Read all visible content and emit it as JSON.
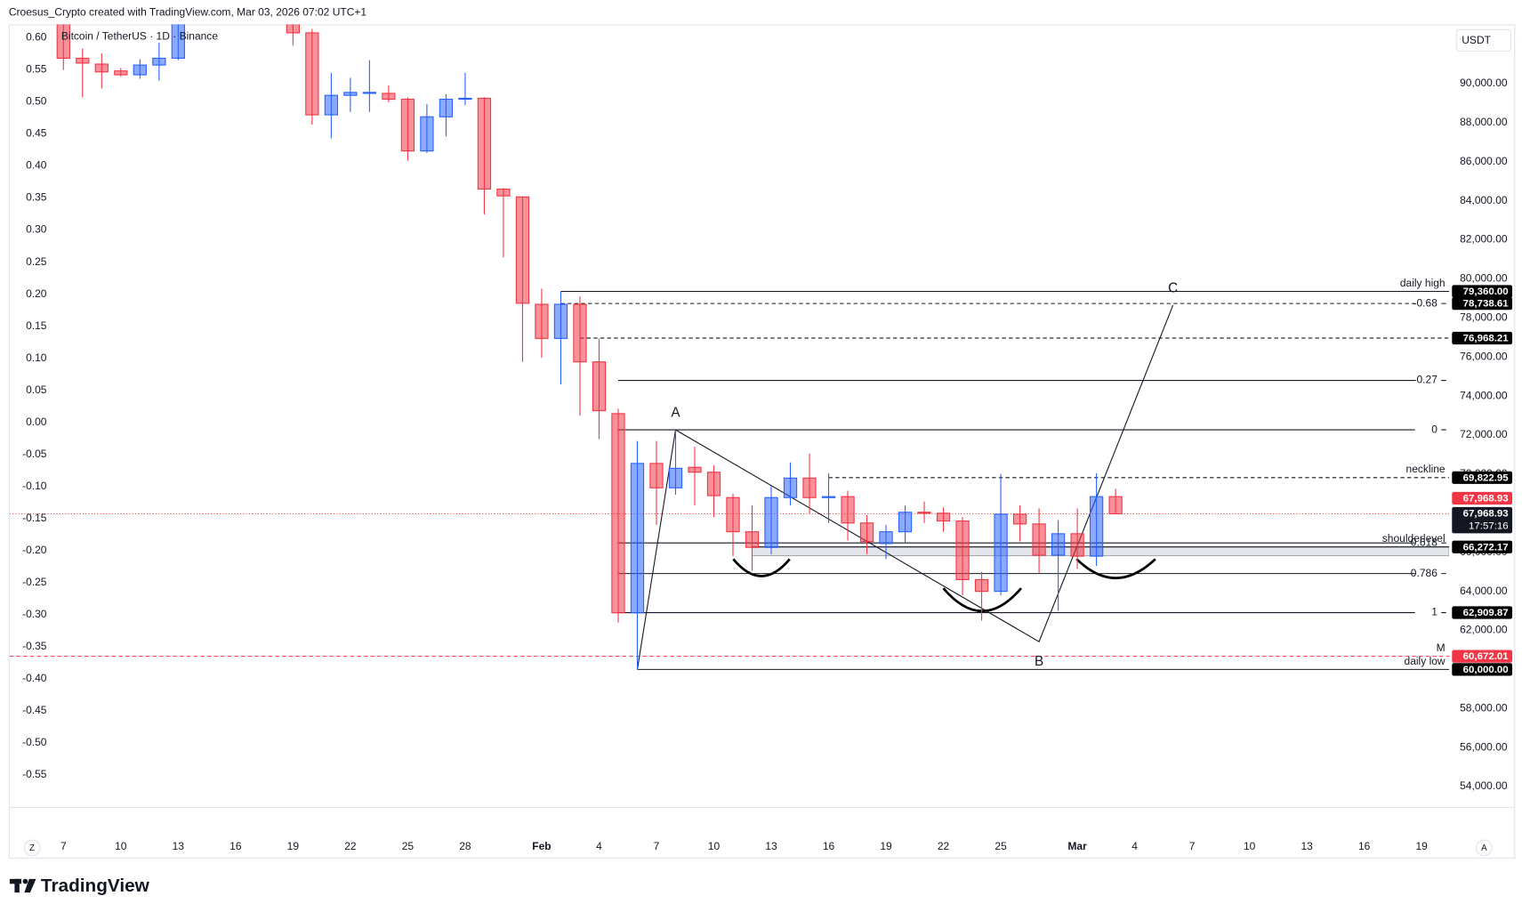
{
  "header": "Croesus_Crypto created with TradingView.com, Mar 03, 2026 07:02 UTC+1",
  "logo": "TradingView",
  "chart_data": {
    "type": "candlestick",
    "title": "Bitcoin / TetherUS · 1D · Binance",
    "currency": "USDT",
    "x": [
      "2026-01-07",
      "2026-01-08",
      "2026-01-09",
      "2026-01-10",
      "2026-01-11",
      "2026-01-12",
      "2026-01-13",
      "2026-01-19",
      "2026-01-20",
      "2026-01-21",
      "2026-01-22",
      "2026-01-23",
      "2026-01-24",
      "2026-01-25",
      "2026-01-26",
      "2026-01-27",
      "2026-01-28",
      "2026-01-29",
      "2026-01-30",
      "2026-01-31",
      "2026-02-01",
      "2026-02-02",
      "2026-02-03",
      "2026-02-04",
      "2026-02-05",
      "2026-02-06",
      "2026-02-07",
      "2026-02-08",
      "2026-02-09",
      "2026-02-10",
      "2026-02-11",
      "2026-02-12",
      "2026-02-13",
      "2026-02-14",
      "2026-02-15",
      "2026-02-16",
      "2026-02-17",
      "2026-02-18",
      "2026-02-19",
      "2026-02-20",
      "2026-02-21",
      "2026-02-22",
      "2026-02-23",
      "2026-02-24",
      "2026-02-25",
      "2026-02-26",
      "2026-02-27",
      "2026-02-28",
      "2026-03-01",
      "2026-03-02",
      "2026-03-03"
    ],
    "open": [
      93200,
      91300,
      91000,
      90650,
      90450,
      90950,
      91300,
      93800,
      92600,
      88400,
      89400,
      89500,
      89500,
      89200,
      86550,
      88300,
      89200,
      89250,
      84600,
      84200,
      78700,
      76950,
      78700,
      75750,
      73100,
      62900,
      70550,
      69300,
      70350,
      70100,
      68800,
      67050,
      66250,
      68800,
      69800,
      68800,
      68850,
      67500,
      66450,
      67050,
      68050,
      68000,
      67600,
      64600,
      64000,
      67950,
      67450,
      65850,
      66950,
      65800,
      68850
    ],
    "high": [
      94000,
      91800,
      91550,
      90800,
      91250,
      92100,
      96200,
      94200,
      92800,
      90550,
      90300,
      91200,
      89900,
      89300,
      88950,
      89450,
      90550,
      89300,
      84650,
      84200,
      79500,
      79360,
      79100,
      76950,
      73350,
      71700,
      71700,
      72250,
      71400,
      70450,
      69000,
      68400,
      69400,
      70600,
      71050,
      70050,
      69150,
      67900,
      67400,
      68400,
      68600,
      68300,
      67800,
      65000,
      70000,
      68400,
      68250,
      67650,
      68250,
      70050,
      69250
    ],
    "low": [
      90700,
      89300,
      89750,
      90350,
      90250,
      90150,
      91200,
      91950,
      87900,
      87200,
      88550,
      88550,
      89050,
      86050,
      86450,
      87300,
      88900,
      83300,
      81100,
      75750,
      75950,
      74600,
      73000,
      71800,
      62400,
      60000,
      67400,
      68950,
      68400,
      67800,
      65800,
      65050,
      65900,
      68400,
      68000,
      67500,
      66600,
      65900,
      65650,
      66450,
      67500,
      67050,
      63800,
      62500,
      63800,
      66550,
      64950,
      63000,
      65150,
      65300,
      67950
    ],
    "close": [
      91300,
      91050,
      90600,
      90450,
      90950,
      91300,
      95400,
      92600,
      88400,
      89400,
      89550,
      89550,
      89200,
      86550,
      88300,
      89200,
      89250,
      84600,
      84250,
      78750,
      76950,
      78700,
      75750,
      73250,
      62900,
      70550,
      69300,
      70300,
      70100,
      68900,
      67050,
      66250,
      68800,
      69800,
      68800,
      68850,
      67500,
      66550,
      67050,
      68050,
      68000,
      67600,
      64600,
      64000,
      67950,
      67450,
      65850,
      66950,
      65800,
      68850,
      67968.93
    ],
    "up_color": "#2962ff",
    "down_color": "#f23645",
    "xlim": [
      "2026-01-04",
      "2026-03-20"
    ],
    "xticks": [
      {
        "value": "2026-01-07",
        "label": "7"
      },
      {
        "value": "2026-01-10",
        "label": "10"
      },
      {
        "value": "2026-01-13",
        "label": "13"
      },
      {
        "value": "2026-01-16",
        "label": "16"
      },
      {
        "value": "2026-01-19",
        "label": "19"
      },
      {
        "value": "2026-01-22",
        "label": "22"
      },
      {
        "value": "2026-01-25",
        "label": "25"
      },
      {
        "value": "2026-01-28",
        "label": "28"
      },
      {
        "value": "2026-02-01",
        "label": "Feb"
      },
      {
        "value": "2026-02-04",
        "label": "4"
      },
      {
        "value": "2026-02-07",
        "label": "7"
      },
      {
        "value": "2026-02-10",
        "label": "10"
      },
      {
        "value": "2026-02-13",
        "label": "13"
      },
      {
        "value": "2026-02-16",
        "label": "16"
      },
      {
        "value": "2026-02-19",
        "label": "19"
      },
      {
        "value": "2026-02-22",
        "label": "22"
      },
      {
        "value": "2026-02-25",
        "label": "25"
      },
      {
        "value": "2026-03-01",
        "label": "Mar"
      },
      {
        "value": "2026-03-04",
        "label": "4"
      },
      {
        "value": "2026-03-07",
        "label": "7"
      },
      {
        "value": "2026-03-10",
        "label": "10"
      },
      {
        "value": "2026-03-13",
        "label": "13"
      },
      {
        "value": "2026-03-16",
        "label": "16"
      },
      {
        "value": "2026-03-19",
        "label": "19"
      }
    ],
    "ylim": [
      52956,
      93037
    ],
    "yticks": [
      {
        "value": 54000,
        "label": "54,000.00"
      },
      {
        "value": 56000,
        "label": "56,000.00"
      },
      {
        "value": 58000,
        "label": "58,000.00"
      },
      {
        "value": 60000,
        "label": "60,000.00"
      },
      {
        "value": 62000,
        "label": "62,000.00"
      },
      {
        "value": 64000,
        "label": "64,000.00"
      },
      {
        "value": 66000,
        "label": "66,000.00"
      },
      {
        "value": 68000,
        "label": "68,000.00"
      },
      {
        "value": 70000,
        "label": "70,000.00"
      },
      {
        "value": 72000,
        "label": "72,000.00"
      },
      {
        "value": 74000,
        "label": "74,000.00"
      },
      {
        "value": 76000,
        "label": "76,000.00"
      },
      {
        "value": 78000,
        "label": "78,000.00"
      },
      {
        "value": 80000,
        "label": "80,000.00"
      },
      {
        "value": 82000,
        "label": "82,000.00"
      },
      {
        "value": 84000,
        "label": "84,000.00"
      },
      {
        "value": 86000,
        "label": "86,000.00"
      },
      {
        "value": 88000,
        "label": "88,000.00"
      },
      {
        "value": 90000,
        "label": "90,000.00"
      }
    ],
    "y2lim": [
      -0.6,
      0.621
    ],
    "y2ticks": [
      {
        "value": 0.6,
        "label": "0.60"
      },
      0.55,
      {
        "value": 0.5,
        "label": "0.50"
      },
      0.45,
      {
        "value": 0.4,
        "label": "0.40"
      },
      0.35,
      {
        "value": 0.3,
        "label": "0.30"
      },
      0.25,
      {
        "value": 0.2,
        "label": "0.20"
      },
      0.15,
      {
        "value": 0.1,
        "label": "0.10"
      },
      0.05,
      {
        "value": 0,
        "label": "0.00"
      },
      -0.05,
      {
        "value": -0.1,
        "label": "-0.10"
      },
      -0.15,
      {
        "value": -0.2,
        "label": "-0.20"
      },
      -0.25,
      {
        "value": -0.3,
        "label": "-0.30"
      },
      -0.35,
      {
        "value": -0.4,
        "label": "-0.40"
      },
      -0.45,
      {
        "value": -0.5,
        "label": "-0.50"
      },
      -0.55
    ],
    "last_price": {
      "value": 67968.93,
      "label": "67,968.93",
      "countdown": "17:57:16",
      "color": "#f23645"
    },
    "levels": [
      {
        "value": 79360,
        "label": "daily high",
        "badge": "79,360.00",
        "from": "2026-02-02",
        "style": "solid"
      },
      {
        "value": 78738.61,
        "fib": -0.68,
        "badge": "78,738.61",
        "from": "2026-02-02",
        "style": "dashed"
      },
      {
        "value": 76968.21,
        "badge": "76,968.21",
        "from": "2026-02-03",
        "style": "dashed"
      },
      {
        "value": 74800,
        "fib": -0.27,
        "from": "2026-02-05",
        "style": "solid"
      },
      {
        "value": 72270,
        "fib": 0,
        "from": "2026-02-05",
        "style": "solid"
      },
      {
        "value": 69822.95,
        "label": "neckline",
        "badge": "69,822.95",
        "from": "2026-02-16",
        "style": "dashed"
      },
      {
        "value": 66272.17,
        "label": "shoulderlevel",
        "badge": "66,272.17",
        "from": "2026-02-12",
        "style": "solid"
      },
      {
        "value": 66480,
        "fib": 0.618,
        "from": "2026-02-05",
        "style": "solid"
      },
      {
        "value": 64910,
        "fib": 0.786,
        "from": "2026-02-05",
        "style": "solid"
      },
      {
        "value": 62909.87,
        "fib": 1,
        "badge": "62,909.87",
        "from": "2026-02-05",
        "style": "solid"
      },
      {
        "value": 60672.01,
        "label": "M",
        "badge": "60,672.01",
        "style": "dashed",
        "color": "#f23645"
      },
      {
        "value": 60000,
        "label": "daily low",
        "badge": "60,000.00",
        "from": "2026-02-06",
        "style": "solid"
      }
    ],
    "zone": {
      "from": "2026-02-12",
      "top": 66272.17,
      "bottom": 65820
    },
    "pattern": [
      {
        "label": null,
        "x": "2026-02-06",
        "value": 60000
      },
      {
        "label": "A",
        "x": "2026-02-08",
        "value": 72270
      },
      {
        "label": "B",
        "x": "2026-02-27",
        "value": 61420
      },
      {
        "label": "C",
        "x": "2026-03-06",
        "value": 78650
      }
    ],
    "axis_buttons": [
      "Z",
      "A"
    ]
  }
}
